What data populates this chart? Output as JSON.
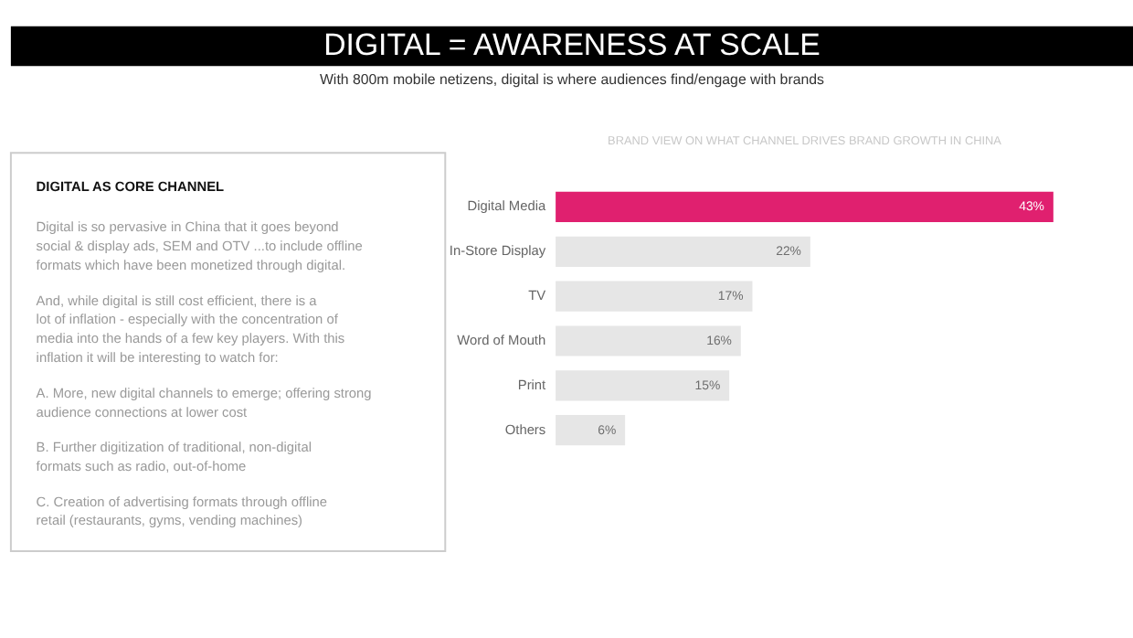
{
  "chart_data": [
    {
      "type": "other",
      "title": "DIGITAL = AWARENESS AT SCALE",
      "subtitle": "With 800m mobile netizens, digital is where audiences find/engage with brands",
      "annotations": [
        "DIGITAL AS CORE CHANNEL",
        "Digital is so pervasive in China that it goes beyond social & display ads, SEM and OTV ...to include offline formats which have been monetized through digital.",
        "And, while digital is still cost efficient, there is a lot of inflation - especially with the concentration of media into the hands of a few key players. With this inflation it will be interesting to watch for:",
        "A. More, new digital channels to emerge; offering strong audience connections at lower cost",
        "B. Further digitization of traditional, non-digital formats such as radio, out-of-home",
        "C. Creation of advertising formats through offline retail (restaurants, gyms, vending machines)"
      ]
    },
    {
      "type": "bar",
      "orientation": "horizontal",
      "title": "BRAND VIEW ON WHAT CHANNEL DRIVES BRAND GROWTH IN CHINA",
      "categories": [
        "Digital Media",
        "In-Store Display",
        "TV",
        "Word of Mouth",
        "Print",
        "Others"
      ],
      "values": [
        43,
        22,
        17,
        16,
        15,
        6
      ],
      "colors": [
        "#e0206f",
        "#e6e6e6",
        "#e6e6e6",
        "#e6e6e6",
        "#e6e6e6",
        "#e6e6e6"
      ],
      "value_labels": [
        "43%",
        "22%",
        "17%",
        "16%",
        "15%",
        "6%"
      ]
    }
  ]
}
